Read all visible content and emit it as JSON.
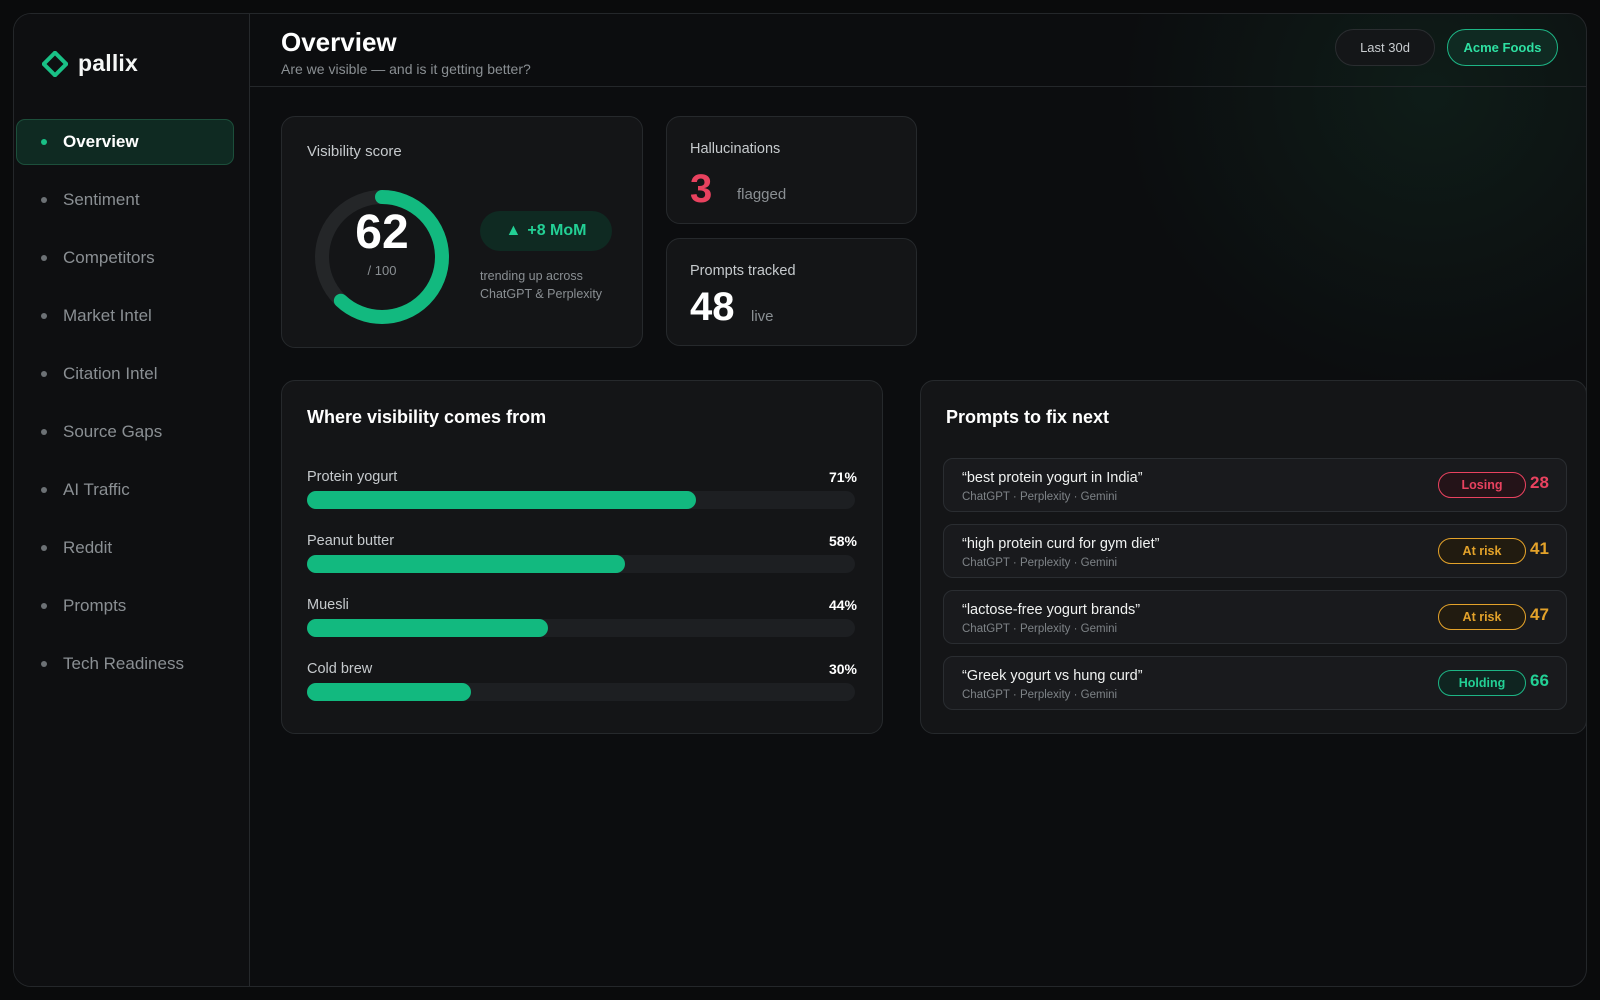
{
  "brand": {
    "name": "pallix",
    "accent": "#19c086"
  },
  "nav": {
    "items": [
      {
        "label": "Overview",
        "active": true
      },
      {
        "label": "Sentiment"
      },
      {
        "label": "Competitors"
      },
      {
        "label": "Market Intel"
      },
      {
        "label": "Citation Intel"
      },
      {
        "label": "Source Gaps"
      },
      {
        "label": "AI Traffic"
      },
      {
        "label": "Reddit"
      },
      {
        "label": "Prompts"
      },
      {
        "label": "Tech Readiness"
      }
    ]
  },
  "header": {
    "title": "Overview",
    "subtitle": "Are we visible — and is it getting better?",
    "range_label": "Last 30d",
    "client_label": "Acme Foods"
  },
  "visibility": {
    "label": "Visibility score",
    "score": "62",
    "max": "/ 100",
    "score_value": 62,
    "score_max": 100,
    "change": "+8 MoM",
    "change_icon": "triangle-up-icon",
    "note": "trending up across ChatGPT & Perplexity"
  },
  "hallucinations": {
    "label": "Hallucinations",
    "value": "3",
    "unit": "flagged",
    "color": "#e9425f"
  },
  "prompts_tracked": {
    "label": "Prompts tracked",
    "value": "48",
    "unit": "live"
  },
  "sources": {
    "title": "Where visibility comes from",
    "items": [
      {
        "label": "Protein yogurt",
        "pct": "71%",
        "value": 71
      },
      {
        "label": "Peanut butter",
        "pct": "58%",
        "value": 58
      },
      {
        "label": "Muesli",
        "pct": "44%",
        "value": 44
      },
      {
        "label": "Cold brew",
        "pct": "30%",
        "value": 30
      }
    ]
  },
  "fix_next": {
    "title": "Prompts to fix next",
    "items": [
      {
        "query": "“best protein yogurt in India”",
        "sources": "ChatGPT · Perplexity · Gemini",
        "status": "Losing",
        "status_key": "losing",
        "score": "28"
      },
      {
        "query": "“high protein curd for gym diet”",
        "sources": "ChatGPT · Perplexity · Gemini",
        "status": "At risk",
        "status_key": "atrisk",
        "score": "41"
      },
      {
        "query": "“lactose-free yogurt brands”",
        "sources": "ChatGPT · Perplexity · Gemini",
        "status": "At risk",
        "status_key": "atrisk",
        "score": "47"
      },
      {
        "query": "“Greek yogurt vs hung curd”",
        "sources": "ChatGPT · Perplexity · Gemini",
        "status": "Holding",
        "status_key": "holding",
        "score": "66"
      }
    ]
  },
  "colors": {
    "positive": "#12b97f",
    "negative": "#e9425f",
    "warning": "#e3a22a",
    "background": "#0a0b0c"
  }
}
